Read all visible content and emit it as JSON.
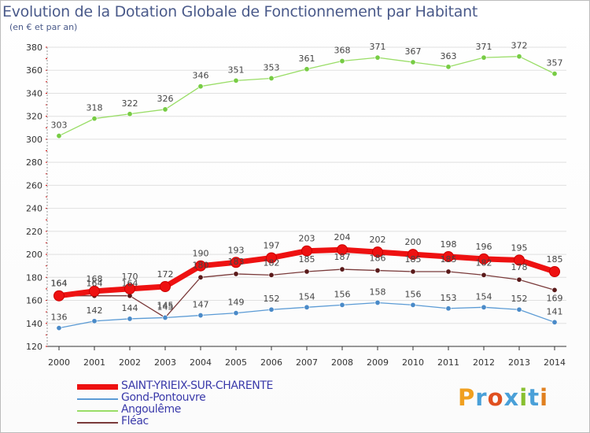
{
  "header": {
    "title": "Evolution de la Dotation Globale de Fonctionnement par Habitant",
    "subtitle": "(en € et par an)"
  },
  "colors": {
    "title": "#4a5a8a",
    "legend_text": "#3a3aaa",
    "axis": "#333333",
    "grid": "#e0e0e0",
    "tick_marks": "#cc0000"
  },
  "chart_data": {
    "type": "line",
    "title": "Evolution de la Dotation Globale de Fonctionnement par Habitant",
    "subtitle": "(en € et par an)",
    "xlabel": "",
    "ylabel": "",
    "x": [
      "2000",
      "2001",
      "2002",
      "2003",
      "2004",
      "2005",
      "2006",
      "2007",
      "2008",
      "2009",
      "2010",
      "2011",
      "2012",
      "2013",
      "2014"
    ],
    "ylim": [
      120,
      380
    ],
    "yticks": [
      120,
      140,
      160,
      180,
      200,
      220,
      240,
      260,
      280,
      300,
      320,
      340,
      360,
      380
    ],
    "grid": "horizontal",
    "legend_position": "bottom-left",
    "series": [
      {
        "name": "SAINT-YRIEIX-SUR-CHARENTE",
        "color": "#ee1111",
        "marker_color": "#cc0000",
        "values": [
          164,
          168,
          170,
          172,
          190,
          193,
          197,
          203,
          204,
          202,
          200,
          198,
          196,
          195,
          185
        ]
      },
      {
        "name": "Gond-Pontouvre",
        "color": "#5b9bd5",
        "marker_color": "#4a8ac8",
        "values": [
          136,
          142,
          144,
          145,
          147,
          149,
          152,
          154,
          156,
          158,
          156,
          153,
          154,
          152,
          141
        ]
      },
      {
        "name": "Angoulême",
        "color": "#99dd66",
        "marker_color": "#77cc44",
        "values": [
          303,
          318,
          322,
          326,
          346,
          351,
          353,
          361,
          368,
          371,
          367,
          363,
          371,
          372,
          357
        ]
      },
      {
        "name": "Fléac",
        "color": "#7a3a3a",
        "marker_color": "#5a1a1a",
        "values": [
          164,
          164,
          164,
          145,
          180,
          183,
          182,
          185,
          187,
          186,
          185,
          185,
          182,
          178,
          169
        ]
      }
    ]
  },
  "brand": {
    "letters": [
      "P",
      "r",
      "o",
      "x",
      "i",
      "t",
      "i"
    ],
    "colors": [
      "#f0a020",
      "#4aa0d8",
      "#e05020",
      "#4aa0d8",
      "#88c030",
      "#4aa0d8",
      "#e08020"
    ]
  }
}
